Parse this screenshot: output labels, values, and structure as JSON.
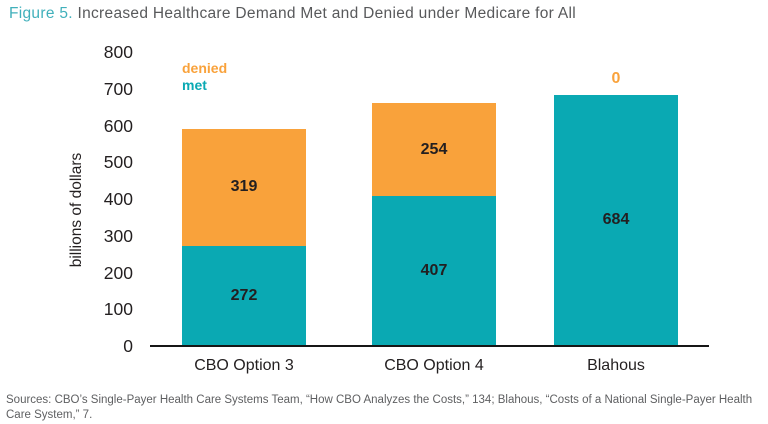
{
  "figure": {
    "label": "Figure 5.",
    "title": "Increased Healthcare Demand Met and Denied under Medicare for All"
  },
  "chart_data": {
    "type": "bar",
    "stacked": true,
    "title": "Increased Healthcare Demand Met and Denied under Medicare for All",
    "categories": [
      "CBO Option 3",
      "CBO Option 4",
      "Blahous"
    ],
    "series": [
      {
        "name": "met",
        "color": "#0AA9B3",
        "values": [
          272,
          407,
          684
        ]
      },
      {
        "name": "denied",
        "color": "#F9A23B",
        "values": [
          319,
          254,
          0
        ]
      }
    ],
    "legend": [
      {
        "label": "denied",
        "color": "#F9A23B"
      },
      {
        "label": "met",
        "color": "#0AA9B3"
      }
    ],
    "xlabel": "",
    "ylabel": "billions of dollars",
    "ylim": [
      0,
      800
    ],
    "yticks": [
      0,
      100,
      200,
      300,
      400,
      500,
      600,
      700,
      800
    ],
    "grid": false,
    "legend_position": "top-left",
    "bar_value_labels": true
  },
  "colors": {
    "met_teal": "#0AA9B3",
    "denied_orange": "#F9A23B",
    "figure_label_teal": "#40B0BB",
    "title_gray": "#58595B",
    "axis_text": "#231F20"
  },
  "footer": {
    "sources": "Sources: CBO’s Single-Payer Health Care Systems Team, “How CBO Analyzes the Costs,” 134; Blahous, “Costs of a National Single-Payer Health Care System,” 7."
  }
}
